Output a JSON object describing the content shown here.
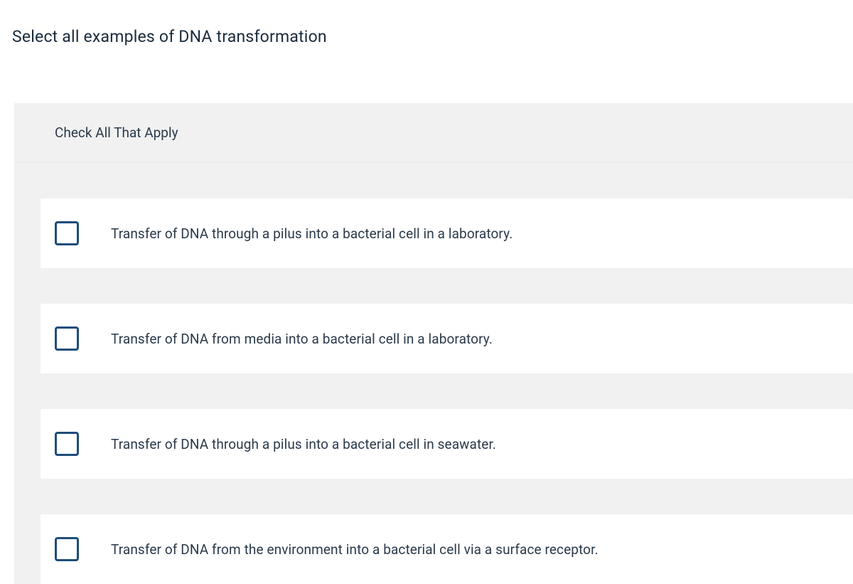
{
  "question": {
    "title": "Select all examples of DNA transformation"
  },
  "panel": {
    "instruction": "Check All That Apply",
    "options": [
      {
        "label": "Transfer of DNA through a pilus into a bacterial cell in a laboratory.",
        "checked": false
      },
      {
        "label": "Transfer of DNA from media into a bacterial cell in a laboratory.",
        "checked": false
      },
      {
        "label": "Transfer of DNA through a pilus into a bacterial cell in seawater.",
        "checked": false
      },
      {
        "label": "Transfer of DNA from the environment into a bacterial cell via a surface receptor.",
        "checked": false
      }
    ]
  },
  "colors": {
    "checkbox_border": "#1e4d7b",
    "panel_background": "#f1f1f1",
    "row_background": "#ffffff",
    "text": "#2a3a4a"
  }
}
